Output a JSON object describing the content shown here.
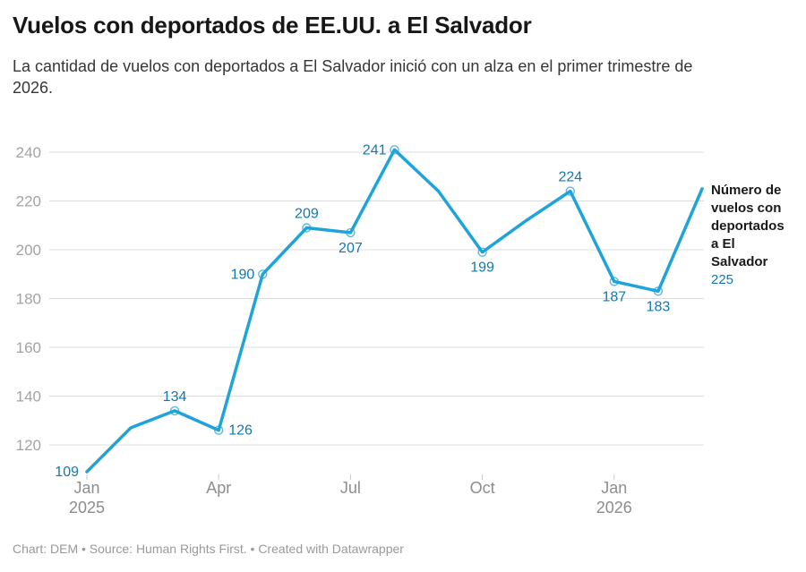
{
  "header": {
    "title": "Vuelos con deportados de EE.UU. a El Salvador",
    "subtitle": "La cantidad de vuelos con deportados a El Salvador inició con un alza en el primer trimestre de\n2026."
  },
  "annotation": {
    "series_label": "Número de\nvuelos con\ndeportados\na El\nSalvador",
    "value": "225"
  },
  "footer": {
    "text": "Chart: DEM • Source: Human Rights First. • Created with Datawrapper"
  },
  "colors": {
    "line": "#1EA3DB",
    "point_label": "#1478AD",
    "marker_stroke": "#5FB8DE",
    "marker_fill": "#FFFFFF",
    "grid": "#DCDCDC",
    "y_axis_label": "#A3A3A3",
    "x_axis_label": "#8D8D8D",
    "tick": "#C9C9C9",
    "title": "#171717",
    "subtitle": "#363636",
    "annotation_text": "#1A1A1A",
    "footer": "#9A9A9A"
  },
  "chart_data": {
    "type": "line",
    "title": "Vuelos con deportados de EE.UU. a El Salvador",
    "subtitle": "La cantidad de vuelos con deportados a El Salvador inició con un alza en el primer trimestre de 2026.",
    "grid": true,
    "legend_position": "right-annotation",
    "ylim": [
      105,
      248
    ],
    "y_ticks": [
      120,
      140,
      160,
      180,
      200,
      220,
      240
    ],
    "x_ticks": [
      {
        "month_index": 0,
        "label": "Jan",
        "sublabel": "2025"
      },
      {
        "month_index": 3,
        "label": "Apr",
        "sublabel": ""
      },
      {
        "month_index": 6,
        "label": "Jul",
        "sublabel": ""
      },
      {
        "month_index": 9,
        "label": "Oct",
        "sublabel": ""
      },
      {
        "month_index": 12,
        "label": "Jan",
        "sublabel": "2026"
      }
    ],
    "series": [
      {
        "name": "Número de vuelos con deportados a El Salvador",
        "last_value_annotation": "225",
        "points": [
          {
            "month": "Jan 2025",
            "value": 109,
            "label_position": "left",
            "marker": false
          },
          {
            "month": "Feb 2025",
            "value": 127,
            "label_position": null,
            "marker": false
          },
          {
            "month": "Mar 2025",
            "value": 134,
            "label_position": "above",
            "marker": true
          },
          {
            "month": "Apr 2025",
            "value": 126,
            "label_position": "right",
            "marker": true
          },
          {
            "month": "May 2025",
            "value": 190,
            "label_position": "left",
            "marker": true
          },
          {
            "month": "Jun 2025",
            "value": 209,
            "label_position": "above",
            "marker": true
          },
          {
            "month": "Jul 2025",
            "value": 207,
            "label_position": "below",
            "marker": true
          },
          {
            "month": "Aug 2025",
            "value": 241,
            "label_position": "left",
            "marker": true
          },
          {
            "month": "Sep 2025",
            "value": 224,
            "label_position": null,
            "marker": false
          },
          {
            "month": "Oct 2025",
            "value": 199,
            "label_position": "below",
            "marker": true
          },
          {
            "month": "Nov 2025",
            "value": 212,
            "label_position": null,
            "marker": false
          },
          {
            "month": "Dec 2025",
            "value": 224,
            "label_position": "above",
            "marker": true
          },
          {
            "month": "Jan 2026",
            "value": 187,
            "label_position": "below",
            "marker": true
          },
          {
            "month": "Feb 2026",
            "value": 183,
            "label_position": "below",
            "marker": true
          },
          {
            "month": "Mar 2026",
            "value": 225,
            "label_position": null,
            "marker": false
          }
        ]
      }
    ]
  }
}
